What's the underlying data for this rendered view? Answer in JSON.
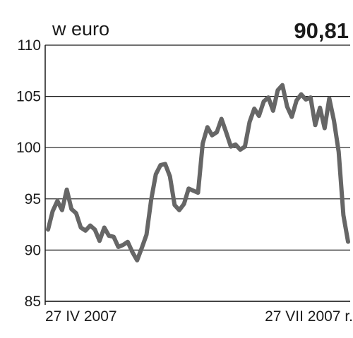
{
  "chart_data": {
    "type": "line",
    "unit_label": "w euro",
    "last_value_label": "90,81",
    "xlabel": "",
    "ylabel": "",
    "ylim": [
      85,
      110
    ],
    "yticks": [
      85,
      90,
      95,
      100,
      105,
      110
    ],
    "ytick_labels": [
      "85",
      "90",
      "95",
      "100",
      "105",
      "110"
    ],
    "x_start_label": "27 IV 2007",
    "x_end_label": "27 VII 2007 r.",
    "grid": true,
    "series": [
      {
        "values": [
          92.0,
          93.8,
          94.8,
          93.9,
          95.9,
          94.0,
          93.6,
          92.2,
          91.9,
          92.4,
          92.0,
          90.9,
          92.2,
          91.4,
          91.3,
          90.3,
          90.5,
          90.8,
          89.8,
          89.0,
          90.2,
          91.5,
          94.9,
          97.4,
          98.3,
          98.4,
          97.2,
          94.4,
          93.9,
          94.5,
          96.0,
          95.8,
          95.6,
          100.4,
          102.0,
          101.2,
          101.5,
          102.8,
          101.5,
          100.1,
          100.3,
          99.8,
          100.1,
          102.5,
          103.8,
          103.1,
          104.5,
          104.9,
          103.6,
          105.6,
          106.1,
          104.0,
          103.0,
          104.6,
          105.2,
          104.7,
          104.9,
          102.2,
          103.9,
          101.9,
          104.8,
          102.6,
          99.6,
          93.4,
          90.81
        ]
      }
    ],
    "colors": {
      "line": "#666666",
      "grid": "#1a1a1a",
      "text": "#1a1a1a"
    }
  }
}
